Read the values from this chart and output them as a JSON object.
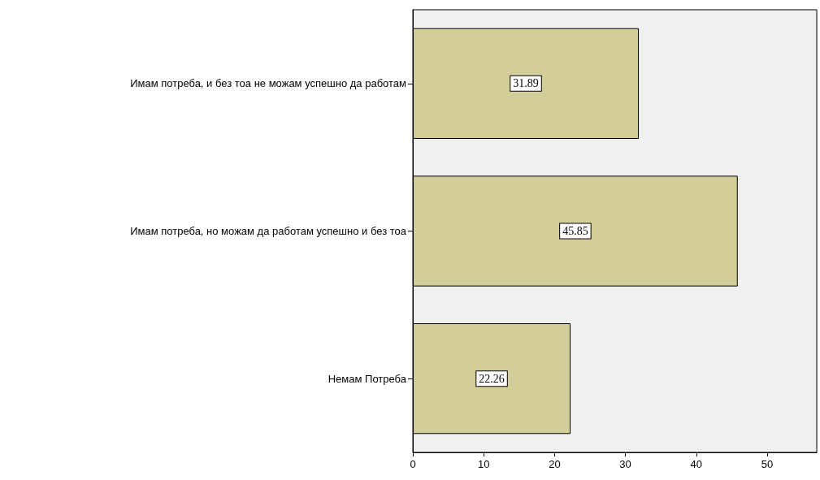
{
  "chart_data": {
    "type": "bar",
    "orientation": "horizontal",
    "categories": [
      "Имам потреба, и без тоа не можам успешно да работам",
      "Имам потреба, но можам да работам успешно и без тоа",
      "Немам Потреба"
    ],
    "values": [
      31.89,
      45.85,
      22.26
    ],
    "color": "#d3ce99",
    "xlim": [
      0,
      57
    ],
    "xticks": [
      0,
      10,
      20,
      30,
      40,
      50
    ],
    "grid": false,
    "data_labels": true
  }
}
